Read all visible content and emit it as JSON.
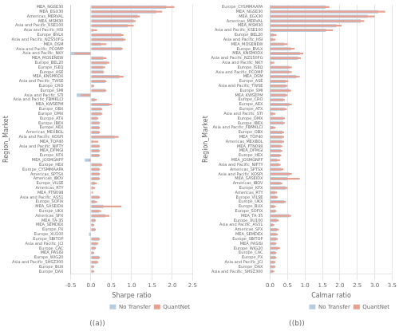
{
  "chart_data": [
    {
      "type": "bar",
      "orientation": "horizontal",
      "title": "((a))",
      "xlabel": "Sharpe ratio",
      "ylabel": "Region_Market",
      "categories": [
        "MEA_NGSE30",
        "MEA_EGX30",
        "Americas_MERVAL",
        "MEA_MSM30",
        "Asia and Pacific_KSE100",
        "Asia and Pacific_HSI",
        "Europe_BVLX",
        "Asia and Pacific_NZS50FG",
        "MEA_DSM",
        "Asia and Pacific_PCOMP",
        "Asia and Pacific_NKY",
        "MEA_MOSENEW",
        "Europe_BEL20",
        "Europe_ISEQ",
        "Europe_ASE",
        "MEA_KNSM0DX",
        "Asia and Pacific_TWSE",
        "Europe_CRO",
        "Europe_SMI",
        "Asia and Pacific_STI",
        "Asia and Pacific_FBMKLCI",
        "MEA_KWSEPM",
        "Europe_OBX",
        "Europe_OMX",
        "Europe_ATX",
        "Europe_IBEX",
        "Europe_AEX",
        "Americas_MEXBOL",
        "Asia and Pacific_KOSPI",
        "MEA_TOP40",
        "Asia and Pacific_NIFTY",
        "MEA_DFMGI",
        "Europe_KFX",
        "MEA_JOSMGNFF",
        "Europe_HEX",
        "Europe_CYSMMAAPA",
        "Americas_SPTSX",
        "Americas_IBOV",
        "Europe_VILSE",
        "Americas_RTY",
        "MEA_FTN098",
        "Asia and Pacific_AS51",
        "Europe_SOFIX",
        "MEA_SASEIDX",
        "Europe_UKX",
        "Americas_SPX",
        "MEA_TA-35",
        "MEA_SEMDEX",
        "Europe_PX",
        "Europe_XU100",
        "Europe_SBITOP",
        "Asia and Pacific_JCI",
        "Europe_CAC",
        "MEA_PASISI",
        "Europe_WIG20",
        "Asia and Pacific_SHSZ300",
        "Europe_BUX",
        "Europe_DAX"
      ],
      "series": [
        {
          "name": "No Transfer",
          "color": "#b8cce0",
          "values": [
            1.85,
            1.6,
            1.15,
            1.05,
            0.9,
            0.05,
            0.75,
            0.8,
            0.25,
            0.75,
            -0.5,
            0.3,
            0.4,
            0.3,
            0.3,
            0.7,
            0.35,
            0.05,
            0.35,
            -0.35,
            0.1,
            0.45,
            0.25,
            0.25,
            0.15,
            0.2,
            0.2,
            0.2,
            0.58,
            0.05,
            0.2,
            0.2,
            0.2,
            -0.15,
            0.25,
            0.2,
            0.2,
            0.2,
            0.1,
            0.05,
            0.0,
            0.2,
            0.1,
            0.3,
            0.2,
            0.35,
            0.1,
            0.05,
            0.1,
            -0.05,
            0.2,
            0.15,
            0.1,
            0.05,
            0.2,
            0.15,
            0.05,
            0.05
          ]
        },
        {
          "name": "QuantNet",
          "color": "#e8a090",
          "values": [
            2.05,
            1.75,
            1.2,
            1.1,
            1.05,
            0.15,
            0.8,
            0.85,
            0.38,
            0.78,
            -0.4,
            0.38,
            0.45,
            0.35,
            0.32,
            0.8,
            0.38,
            0.08,
            0.38,
            -0.25,
            0.14,
            0.52,
            0.28,
            0.28,
            0.18,
            0.22,
            0.22,
            0.22,
            0.68,
            0.18,
            0.22,
            0.22,
            0.22,
            -0.05,
            0.28,
            0.22,
            0.22,
            0.22,
            0.14,
            0.1,
            0.05,
            0.22,
            0.15,
            0.75,
            0.25,
            0.45,
            0.12,
            0.08,
            0.12,
            -0.02,
            0.22,
            0.18,
            0.12,
            0.08,
            0.22,
            0.18,
            0.08,
            0.08
          ]
        }
      ],
      "xlim": [
        -0.5,
        2.5
      ],
      "xticks": [
        -0.5,
        {
          "value": 0,
          "label": "0.0"
        },
        0.5,
        {
          "value": 1,
          "label": "1.0"
        },
        1.5,
        {
          "value": 2,
          "label": "2.0"
        },
        2.5
      ],
      "grid": true,
      "legend": "lower right"
    },
    {
      "type": "bar",
      "orientation": "horizontal",
      "title": "((b))",
      "xlabel": "Calmar ratio",
      "ylabel": "Region_Market",
      "categories": [
        "Europe_CYSMMAAPA",
        "MEA_NGSE30",
        "MEA_EGX30",
        "Americas_MERVAL",
        "MEA_MSM30",
        "Asia and Pacific_KSE100",
        "Europe_BEL20",
        "Asia and Pacific_HSI",
        "MEA_MOSENEW",
        "Europe_BVLX",
        "MEA_KNSM0DX",
        "Asia and Pacific_NZS50FG",
        "Asia and Pacific_NKY",
        "Europe_ISEQ",
        "Asia and Pacific_PCOMP",
        "MEA_DSM",
        "Europe_ASE",
        "Asia and Pacific_TWSE",
        "Europe_SMI",
        "MEA_KWSEPM",
        "Europe_CRO",
        "Europe_AEX",
        "Europe_ATX",
        "Asia and Pacific_STI",
        "Europe_OMX",
        "Europe_IBEX",
        "Asia and Pacific_FBMKLCI",
        "Europe_OBX",
        "MEA_TOP40",
        "Americas_MEXBOL",
        "MEA_FTN098",
        "MEA_DFMGI",
        "Europe_HEX",
        "MEA_JOSMGNFF",
        "Asia and Pacific_NIFTY",
        "Americas_SPTSX",
        "Asia and Pacific_KOSPI",
        "MEA_SASEIDX",
        "Americas_IBOV",
        "Europe_KFX",
        "Americas_RTY",
        "Europe_VILSE",
        "Europe_UKX",
        "Europe_BUX",
        "Europe_SOFIX",
        "MEA_TA-35",
        "Europe_XU100",
        "Asia and Pacific_AS51",
        "Americas_SPX",
        "MEA_SEMDEX",
        "Europe_SBITOP",
        "MEA_PASISI",
        "Europe_WIG20",
        "Europe_CAC",
        "Europe_PX",
        "Asia and Pacific_JCI",
        "Europe_DAX",
        "Asia and Pacific_SHSZ300"
      ],
      "series": [
        {
          "name": "No Transfer",
          "color": "#b8cce0",
          "values": [
            1.6,
            3.1,
            2.8,
            2.6,
            1.9,
            1.6,
            0.1,
            0.08,
            0.4,
            0.6,
            0.85,
            0.8,
            0.05,
            0.55,
            0.55,
            0.75,
            0.45,
            0.45,
            0.55,
            0.45,
            0.38,
            0.55,
            0.42,
            0.08,
            0.38,
            0.38,
            0.1,
            0.35,
            0.35,
            0.35,
            0.3,
            0.3,
            0.28,
            0.2,
            0.25,
            0.32,
            0.55,
            0.5,
            0.3,
            0.45,
            0.15,
            0.18,
            0.4,
            0.12,
            0.15,
            0.55,
            0.2,
            0.08,
            0.2,
            0.18,
            0.18,
            0.15,
            0.22,
            0.15,
            0.15,
            0.12,
            0.12,
            0.08
          ]
        },
        {
          "name": "QuantNet",
          "color": "#e8a090",
          "values": [
            1.7,
            3.3,
            3.0,
            2.7,
            2.05,
            1.8,
            0.18,
            0.15,
            0.5,
            0.7,
            0.95,
            0.88,
            0.12,
            0.62,
            0.62,
            0.85,
            0.52,
            0.5,
            0.6,
            0.5,
            0.42,
            0.62,
            0.48,
            0.15,
            0.42,
            0.42,
            0.15,
            0.4,
            0.4,
            0.4,
            0.35,
            0.35,
            0.32,
            0.28,
            0.3,
            0.38,
            0.62,
            0.85,
            0.35,
            0.5,
            0.2,
            0.22,
            0.45,
            0.16,
            0.18,
            0.6,
            0.25,
            0.12,
            0.25,
            0.22,
            0.22,
            0.18,
            0.28,
            0.18,
            0.18,
            0.15,
            0.15,
            0.12
          ]
        }
      ],
      "xlim": [
        0,
        3.5
      ],
      "xticks": [
        {
          "value": 0,
          "label": "0.0"
        },
        0.5,
        {
          "value": 1,
          "label": "1.0"
        },
        1.5,
        {
          "value": 2,
          "label": "2.0"
        },
        2.5,
        {
          "value": 3,
          "label": "3.0"
        },
        3.5
      ],
      "grid": true,
      "legend": "lower right"
    }
  ]
}
